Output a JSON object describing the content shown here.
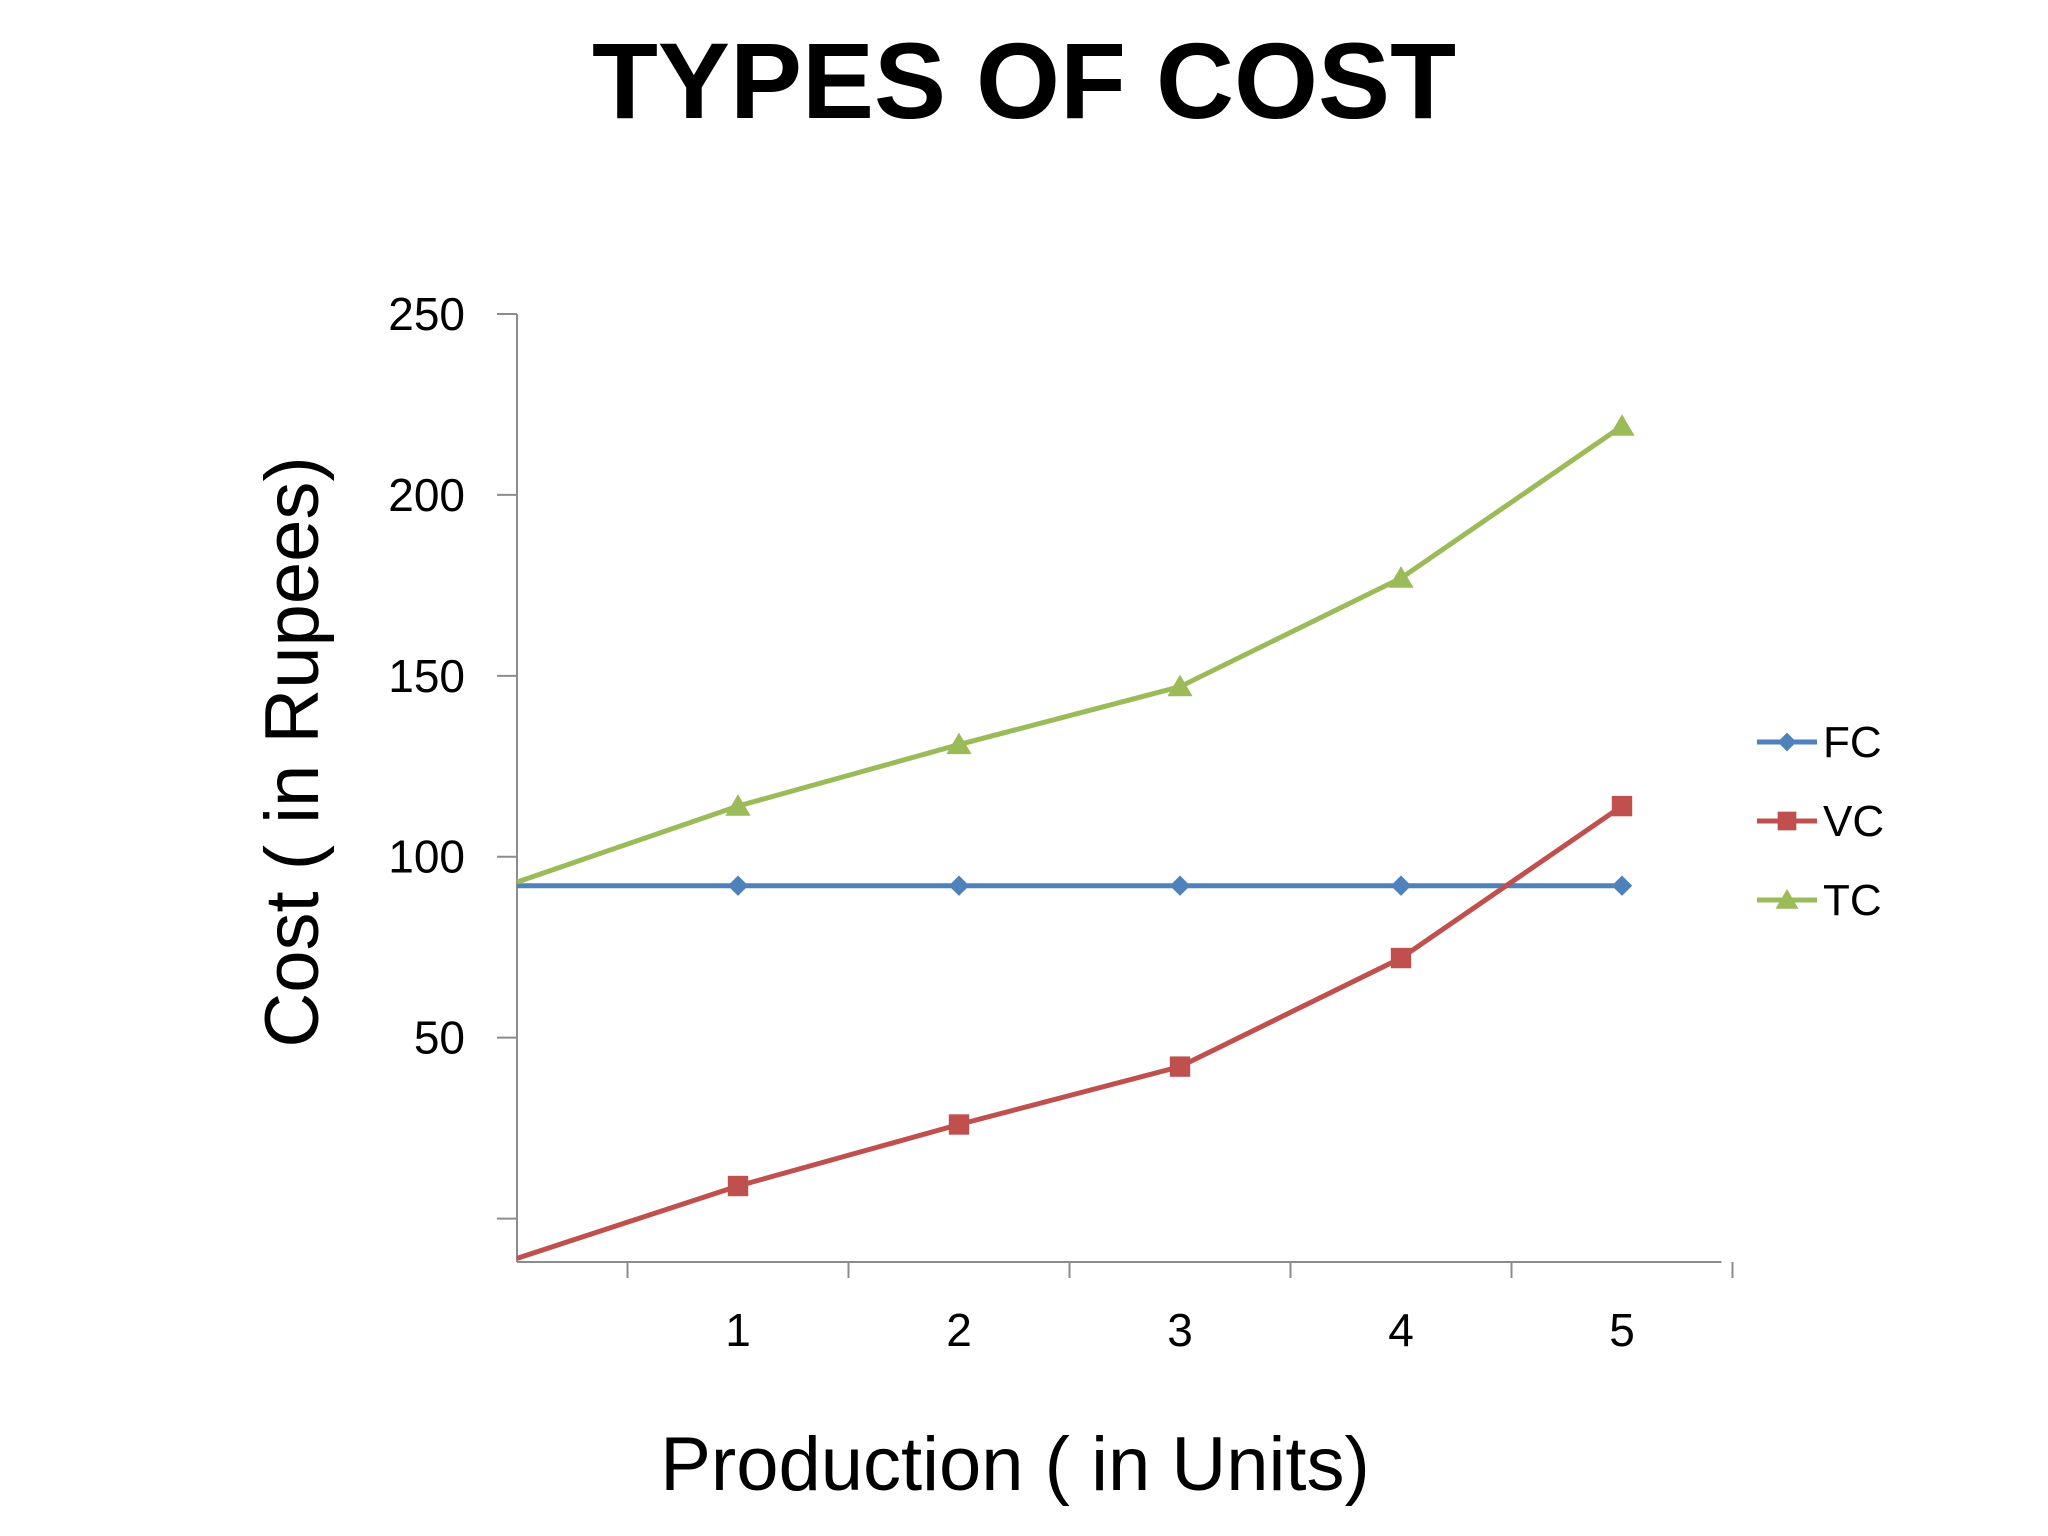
{
  "chart_data": {
    "type": "line",
    "title": "TYPES OF COST",
    "xlabel": "Production ( in Units)",
    "ylabel": "Cost ( in Rupees)",
    "ylim": [
      -12,
      250
    ],
    "xlim": [
      0,
      5.45
    ],
    "y_ticks": [
      {
        "value": 0,
        "label": ""
      },
      {
        "value": 50,
        "label": "50"
      },
      {
        "value": 100,
        "label": "100"
      },
      {
        "value": 150,
        "label": "150"
      },
      {
        "value": 200,
        "label": "200"
      },
      {
        "value": 250,
        "label": "250"
      }
    ],
    "x_ticks": [
      {
        "value": 1,
        "label": "1"
      },
      {
        "value": 2,
        "label": "2"
      },
      {
        "value": 3,
        "label": "3"
      },
      {
        "value": 4,
        "label": "4"
      },
      {
        "value": 5,
        "label": "5"
      }
    ],
    "x_category_boundaries": [
      0.5,
      1.5,
      2.5,
      3.5,
      4.5,
      5.5
    ],
    "grid": false,
    "legend_position": "right",
    "series": [
      {
        "name": "FC",
        "color": "#4f81bd",
        "marker": "diamond",
        "points": [
          [
            0,
            92
          ],
          [
            1,
            92
          ],
          [
            2,
            92
          ],
          [
            3,
            92
          ],
          [
            4,
            92
          ],
          [
            5,
            92
          ]
        ]
      },
      {
        "name": "VC",
        "color": "#c0504d",
        "marker": "square",
        "points": [
          [
            0,
            -11
          ],
          [
            1,
            9
          ],
          [
            2,
            26
          ],
          [
            3,
            42
          ],
          [
            4,
            72
          ],
          [
            5,
            114
          ]
        ]
      },
      {
        "name": "TC",
        "color": "#9bbb59",
        "marker": "triangle",
        "points": [
          [
            0,
            93
          ],
          [
            1,
            114
          ],
          [
            2,
            131
          ],
          [
            3,
            147
          ],
          [
            4,
            177
          ],
          [
            5,
            219
          ]
        ]
      }
    ]
  }
}
